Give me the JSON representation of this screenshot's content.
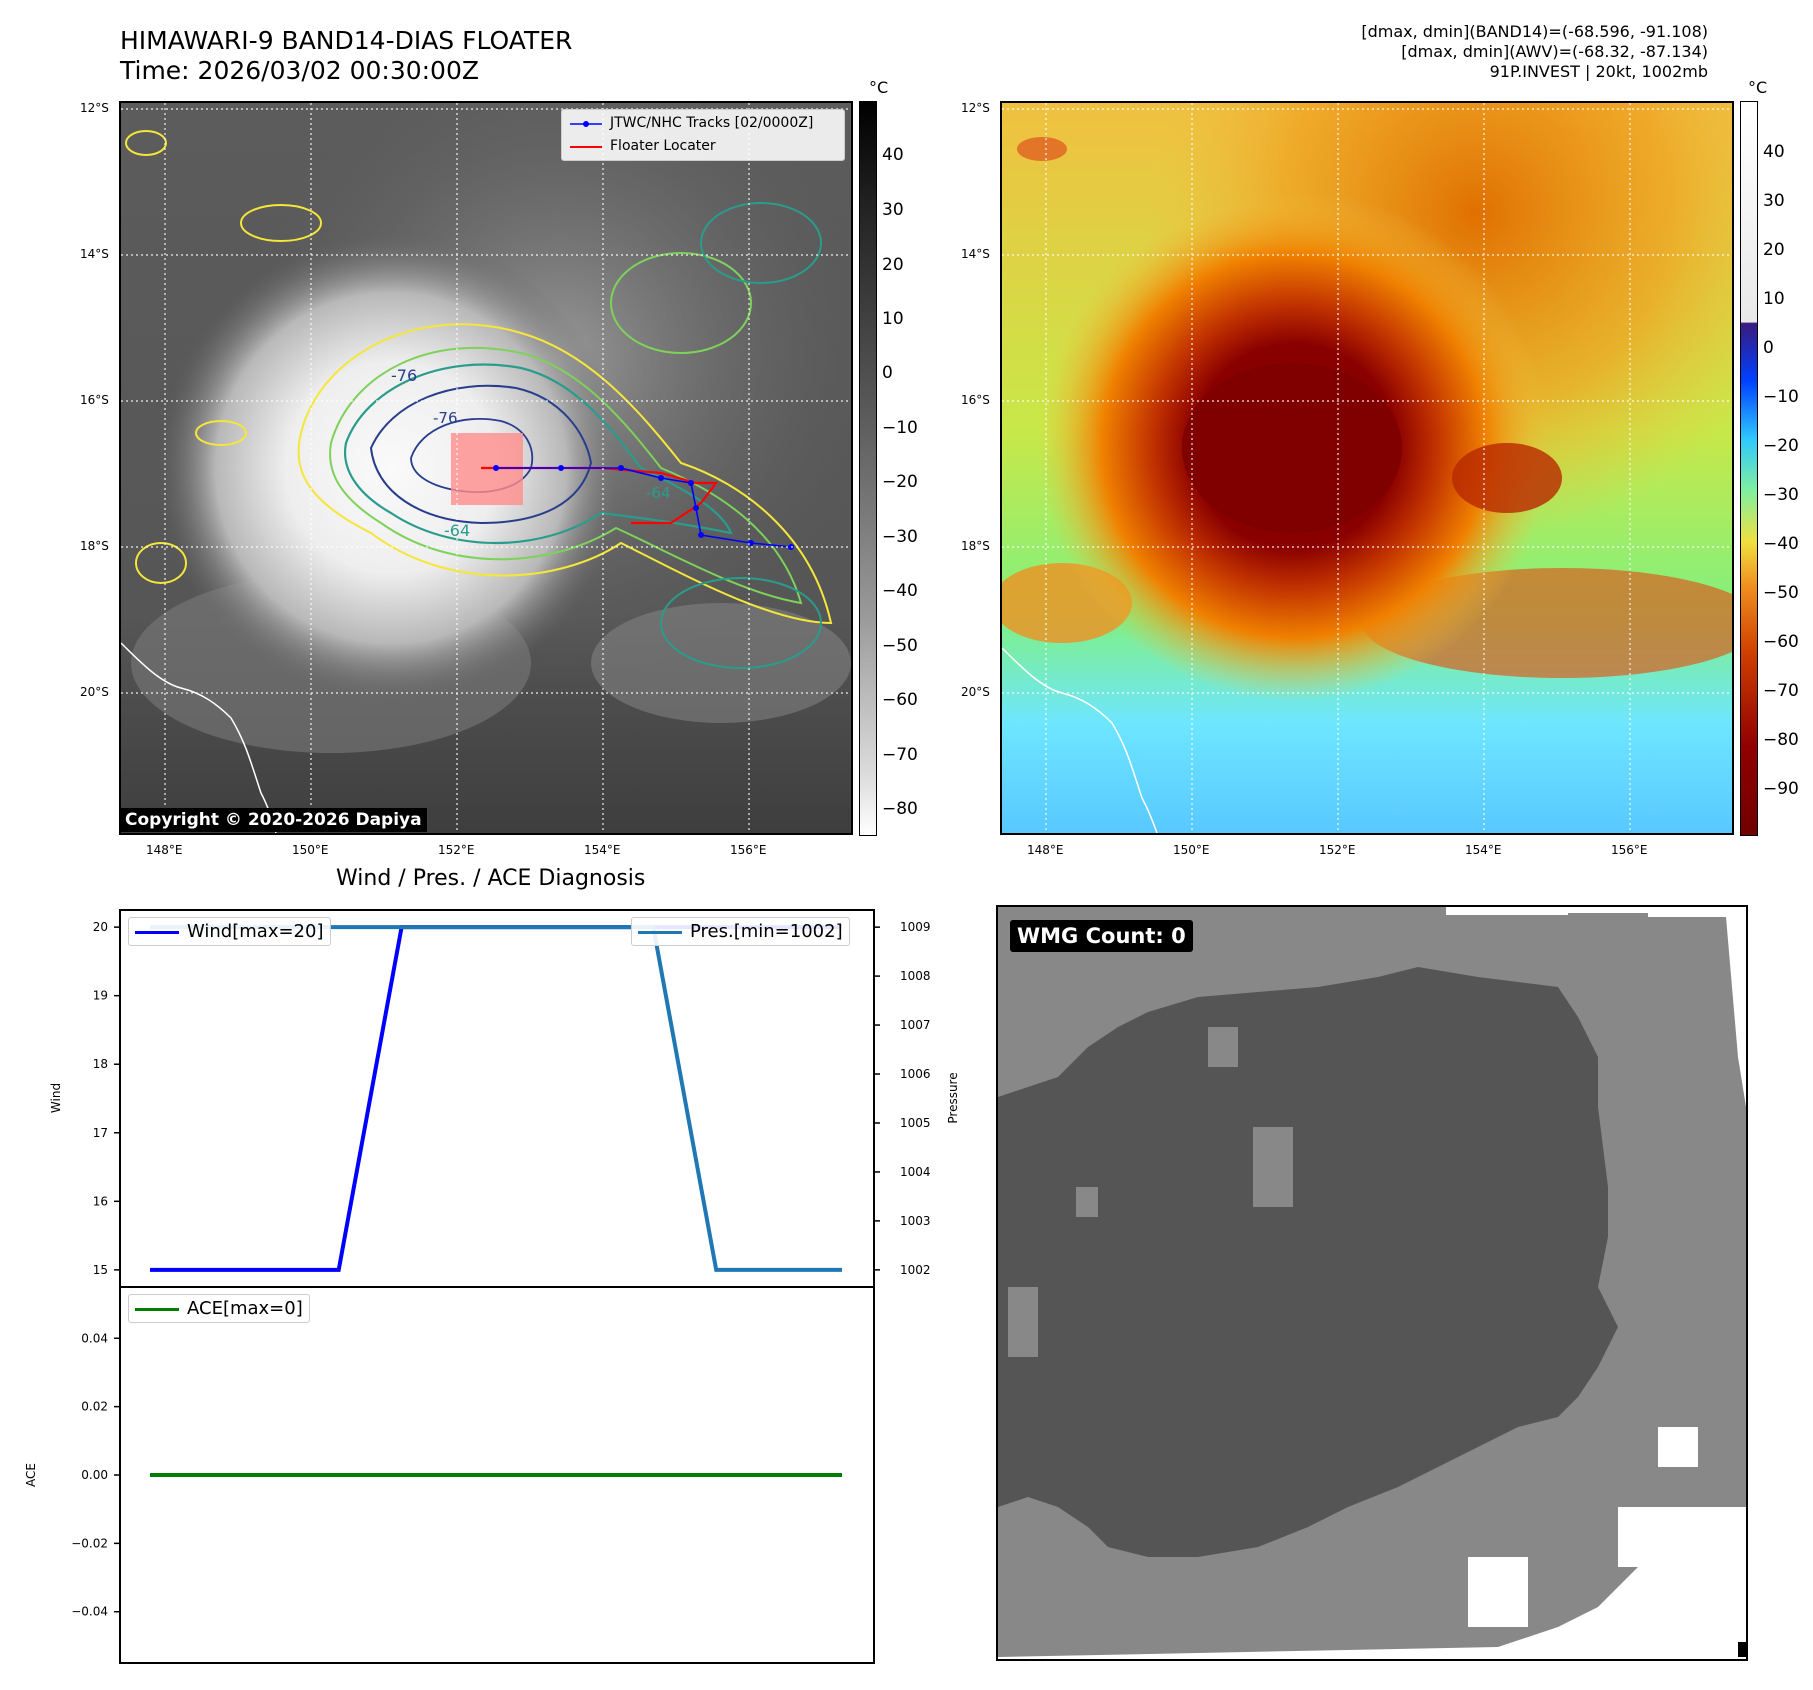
{
  "header": {
    "title_line1": "HIMAWARI-9 BAND14-DIAS FLOATER",
    "title_line2": "Time: 2026/03/02 00:30:00Z",
    "stats_line1": "[dmax, dmin](BAND14)=(-68.596, -91.108)",
    "stats_line2": "[dmax, dmin](AWV)=(-68.32, -87.134)",
    "stats_line3": "91P.INVEST | 20kt, 1002mb"
  },
  "maps": {
    "lat_ticks": [
      "12°S",
      "14°S",
      "16°S",
      "18°S",
      "20°S"
    ],
    "lon_ticks": [
      "148°E",
      "150°E",
      "152°E",
      "154°E",
      "156°E"
    ],
    "copyright": "Copyright © 2020-2026 Dapiya",
    "legend": {
      "tracks": "JTWC/NHC Tracks [02/0000Z]",
      "locater": "Floater Locater"
    },
    "contour_labels": [
      "-76",
      "-76",
      "-64",
      "-64"
    ],
    "colorbar_unit": "°C",
    "colorbar_left_ticks": [
      "40",
      "30",
      "20",
      "10",
      "0",
      "−10",
      "−20",
      "−30",
      "−40",
      "−50",
      "−60",
      "−70",
      "−80"
    ],
    "colorbar_right_ticks": [
      "40",
      "30",
      "20",
      "10",
      "0",
      "−10",
      "−20",
      "−30",
      "−40",
      "−50",
      "−60",
      "−70",
      "−80",
      "−90"
    ],
    "colors": {
      "track": "#0000ff",
      "locater": "#ff0000",
      "locater_box": "#ff8c8c"
    }
  },
  "diagnosis": {
    "title": "Wind / Pres. / ACE Diagnosis",
    "wind_ylabel": "Wind",
    "pres_ylabel": "Pressure",
    "ace_ylabel": "ACE",
    "wind_legend": "Wind[max=20]",
    "pres_legend": "Pres.[min=1002]",
    "ace_legend": "ACE[max=0]",
    "wind_ticks": [
      "20",
      "19",
      "18",
      "17",
      "16",
      "15"
    ],
    "pres_ticks": [
      "1009",
      "1008",
      "1007",
      "1006",
      "1005",
      "1004",
      "1003",
      "1002"
    ],
    "ace_ticks": [
      "0.04",
      "0.02",
      "0.00",
      "−0.02",
      "−0.04"
    ],
    "colors": {
      "wind": "#0000ff",
      "pres": "#1f77b4",
      "ace": "#008000"
    }
  },
  "wmg": {
    "count_label": "WMG Count: 0"
  },
  "chart_data": [
    {
      "type": "line",
      "title": "Wind / Pres. / ACE Diagnosis",
      "ylabel": "Wind",
      "ylim": [
        14.75,
        20.25
      ],
      "x": [
        0,
        1,
        2,
        3,
        4,
        5,
        6,
        7,
        8,
        9,
        10,
        11
      ],
      "series": [
        {
          "name": "Wind[max=20]",
          "values": [
            15,
            15,
            15,
            15,
            20,
            20,
            20,
            20,
            20,
            20,
            20,
            20
          ]
        }
      ]
    },
    {
      "type": "line",
      "ylabel": "Pressure",
      "ylim": [
        1001.65,
        1009.35
      ],
      "x": [
        0,
        1,
        2,
        3,
        4,
        5,
        6,
        7,
        8,
        9,
        10,
        11
      ],
      "series": [
        {
          "name": "Pres.[min=1002]",
          "values": [
            1009,
            1009,
            1009,
            1009,
            1009,
            1009,
            1009,
            1009,
            1009,
            1002,
            1002,
            1002
          ]
        }
      ]
    },
    {
      "type": "line",
      "ylabel": "ACE",
      "ylim": [
        -0.055,
        0.055
      ],
      "x": [
        0,
        1,
        2,
        3,
        4,
        5,
        6,
        7,
        8,
        9,
        10,
        11
      ],
      "series": [
        {
          "name": "ACE[max=0]",
          "values": [
            0,
            0,
            0,
            0,
            0,
            0,
            0,
            0,
            0,
            0,
            0,
            0
          ]
        }
      ]
    }
  ]
}
